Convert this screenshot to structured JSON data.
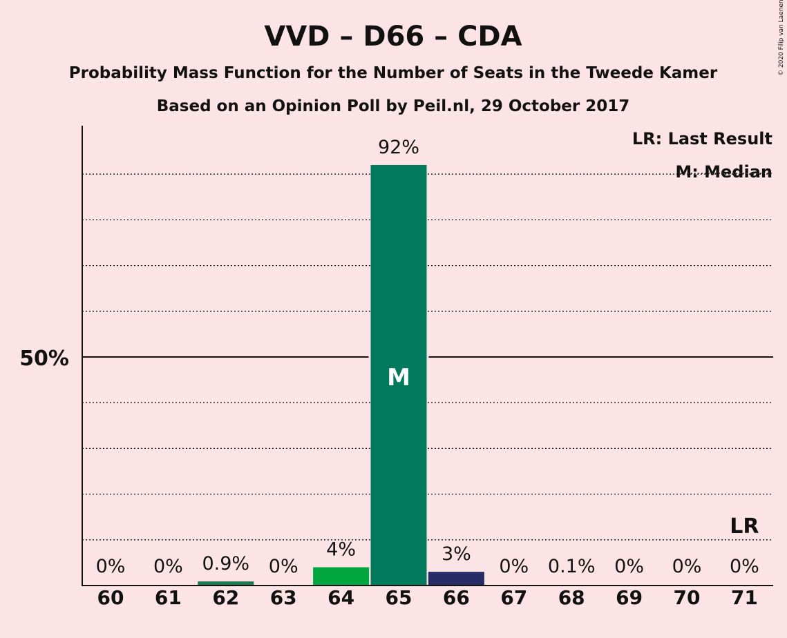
{
  "title": "VVD – D66 – CDA",
  "subtitle": "Probability Mass Function for the Number of Seats in the Tweede Kamer",
  "subtitle2": "Based on an Opinion Poll by Peil.nl, 29 October 2017",
  "legend": {
    "last_result": "LR: Last Result",
    "median": "M: Median"
  },
  "copyright": "© 2020 Filip van Laenen",
  "colors": {
    "background": "#FCE4E6",
    "vvd": "#1F7A54",
    "cda": "#00A63E",
    "d66": "#00795C",
    "navy": "#262B66"
  },
  "chart_data": {
    "type": "bar",
    "title": "VVD – D66 – CDA",
    "xlabel": "",
    "ylabel": "",
    "ylim": [
      0,
      100
    ],
    "categories": [
      "60",
      "61",
      "62",
      "63",
      "64",
      "65",
      "66",
      "67",
      "68",
      "69",
      "70",
      "71"
    ],
    "values": [
      0,
      0,
      0.9,
      0,
      4,
      92,
      3,
      0,
      0.1,
      0,
      0,
      0
    ],
    "labels": [
      "0%",
      "0%",
      "0.9%",
      "0%",
      "4%",
      "92%",
      "3%",
      "0%",
      "0.1%",
      "0%",
      "0%",
      "0%"
    ],
    "bar_colors": [
      "#1F7A54",
      "#1F7A54",
      "#1F7A54",
      "#00A63E",
      "#00A63E",
      "#00795C",
      "#262B66",
      "#262B66",
      "#262B66",
      "#262B66",
      "#262B66",
      "#262B66"
    ],
    "y_tick_label": "50%",
    "y_tick_value": 50,
    "gridlines": [
      10,
      20,
      30,
      40,
      60,
      70,
      80,
      90
    ],
    "median_category": "65",
    "median_marker": "M",
    "last_result_category": "71",
    "last_result_marker": "LR"
  }
}
